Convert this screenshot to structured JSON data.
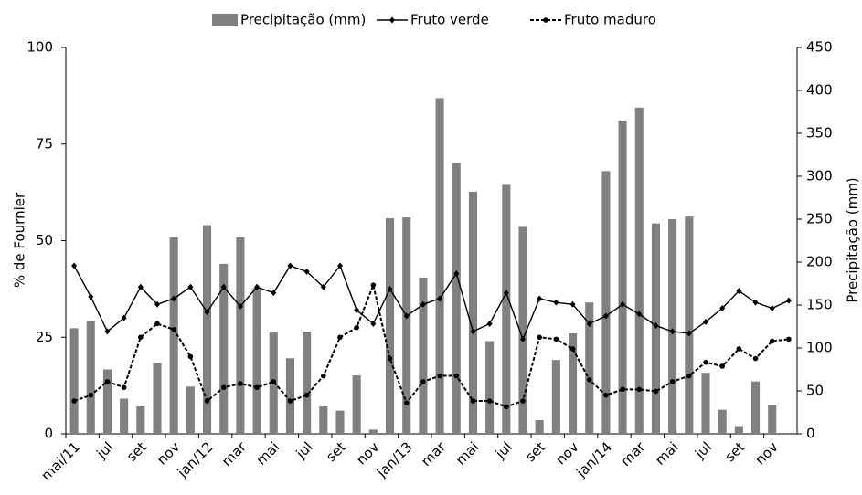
{
  "chart_data": {
    "type": "combo",
    "categories": [
      "mai/11",
      null,
      "jul",
      null,
      "set",
      null,
      "nov",
      null,
      "jan/12",
      null,
      "mar",
      null,
      "mai",
      null,
      "jul",
      null,
      "set",
      null,
      "nov",
      null,
      "jan/13",
      null,
      "mar",
      null,
      "mai",
      null,
      "jul",
      null,
      "set",
      null,
      "nov",
      null,
      "jan/14",
      null,
      "mar",
      null,
      "mai",
      null,
      "jul",
      null,
      "set",
      null,
      "nov",
      null
    ],
    "series": [
      {
        "name": "Precipitação (mm)",
        "kind": "bar",
        "axis": "y2",
        "color": "#808080",
        "values": [
          123,
          131,
          75,
          41,
          32,
          83,
          229,
          55,
          243,
          198,
          229,
          170,
          118,
          88,
          119,
          32,
          27,
          68,
          5,
          251,
          252,
          182,
          391,
          315,
          282,
          108,
          290,
          241,
          16,
          86,
          117,
          153,
          306,
          365,
          380,
          245,
          250,
          253,
          71,
          28,
          9,
          61,
          33,
          0
        ]
      },
      {
        "name": "Fruto verde",
        "kind": "line",
        "color": "#000000",
        "dashed": false,
        "marker": "diamond",
        "values": [
          43.5,
          35.5,
          26.5,
          30,
          38,
          33.5,
          35,
          38,
          31.5,
          38,
          33,
          38,
          36.5,
          43.5,
          42,
          38,
          43.5,
          32,
          28.5,
          37.5,
          30.5,
          33.5,
          35,
          41.5,
          26.5,
          28.5,
          36.5,
          24.5,
          35,
          34,
          33.5,
          28.5,
          30.5,
          33.5,
          31,
          28,
          26.5,
          26,
          29,
          32.5,
          37,
          34,
          32.5,
          34.5
        ]
      },
      {
        "name": "Fruto maduro",
        "kind": "line",
        "color": "#000000",
        "dashed": true,
        "marker": "circle",
        "values": [
          8.5,
          10,
          13.5,
          12,
          25,
          28.5,
          27,
          20,
          8.5,
          12,
          13,
          12,
          13.5,
          8.5,
          10,
          15,
          25,
          27.5,
          38.5,
          19.5,
          8,
          13.5,
          15,
          15,
          8.5,
          8.5,
          7,
          8.5,
          25,
          24.5,
          22,
          14,
          10,
          11.5,
          11.5,
          11,
          13.5,
          15,
          18.5,
          17.5,
          22,
          19.5,
          24,
          24.5
        ]
      }
    ],
    "y_label": "% de Fournier",
    "y2_label": "Precipitação (mm)",
    "ylim": [
      0,
      100
    ],
    "yticks": [
      0,
      25,
      50,
      75,
      100
    ],
    "y2lim": [
      0,
      450
    ],
    "y2ticks": [
      0,
      50,
      100,
      150,
      200,
      250,
      300,
      350,
      400,
      450
    ],
    "grid": false,
    "legend": "top"
  }
}
